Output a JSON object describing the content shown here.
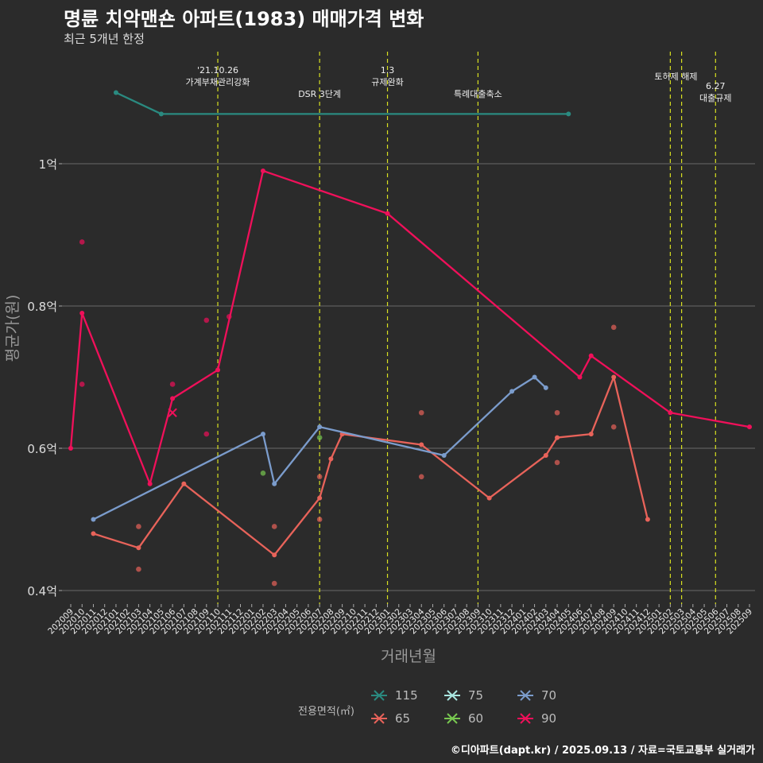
{
  "title": "명륜 치악맨숀 아파트(1983) 매매가격 변화",
  "subtitle": "최근 5개년 한정",
  "caption": "©디아파트(dapt.kr) / 2025.09.13 / 자료=국토교통부 실거래가",
  "chart_data": {
    "type": "line",
    "xlabel": "거래년월",
    "ylabel": "평균가(원)",
    "x": [
      "202009",
      "202010",
      "202011",
      "202012",
      "202101",
      "202102",
      "202103",
      "202104",
      "202105",
      "202106",
      "202107",
      "202108",
      "202109",
      "202110",
      "202111",
      "202112",
      "202201",
      "202202",
      "202203",
      "202204",
      "202205",
      "202206",
      "202207",
      "202208",
      "202209",
      "202210",
      "202211",
      "202212",
      "202301",
      "202302",
      "202303",
      "202304",
      "202305",
      "202306",
      "202307",
      "202308",
      "202309",
      "202310",
      "202311",
      "202312",
      "202401",
      "202402",
      "202403",
      "202404",
      "202405",
      "202406",
      "202407",
      "202408",
      "202409",
      "202410",
      "202411",
      "202412",
      "202501",
      "202502",
      "202503",
      "202504",
      "202505",
      "202506",
      "202507",
      "202508",
      "202509"
    ],
    "yunit": "만원",
    "yticks": [
      {
        "value": 4000,
        "label": "0.4억"
      },
      {
        "value": 6000,
        "label": "0.6억"
      },
      {
        "value": 8000,
        "label": "0.8억"
      },
      {
        "value": 10000,
        "label": "1억"
      }
    ],
    "ylim": [
      3800,
      11500
    ],
    "grid": true,
    "legend_title": "전용면적(㎡)",
    "legend_position": "bottom",
    "series": [
      {
        "name": "115",
        "color": "#2a8a80",
        "line": [
          [
            "202101",
            11000
          ],
          [
            "202105",
            10700
          ],
          [
            "202405",
            10700
          ]
        ],
        "points": []
      },
      {
        "name": "65",
        "color": "#e8635a",
        "line": [
          [
            "202011",
            4800
          ],
          [
            "202103",
            4600
          ],
          [
            "202107",
            5500
          ],
          [
            "202203",
            4500
          ],
          [
            "202207",
            5300
          ],
          [
            "202208",
            5850
          ],
          [
            "202209",
            6200
          ],
          [
            "202304",
            6050
          ],
          [
            "202310",
            5300
          ],
          [
            "202403",
            5900
          ],
          [
            "202404",
            6150
          ],
          [
            "202407",
            6200
          ],
          [
            "202409",
            7000
          ],
          [
            "202412",
            5000
          ]
        ],
        "points": [
          [
            "202103",
            4900
          ],
          [
            "202103",
            4300
          ],
          [
            "202203",
            4900
          ],
          [
            "202203",
            4100
          ],
          [
            "202207",
            5600
          ],
          [
            "202207",
            5000
          ],
          [
            "202304",
            6500
          ],
          [
            "202304",
            5600
          ],
          [
            "202404",
            6500
          ],
          [
            "202404",
            5800
          ],
          [
            "202409",
            7700
          ],
          [
            "202409",
            6300
          ]
        ]
      },
      {
        "name": "75",
        "color": "#a8e6e0",
        "line": [],
        "points": []
      },
      {
        "name": "60",
        "color": "#78c850",
        "line": [],
        "points": [
          [
            "202202",
            5650
          ],
          [
            "202207",
            6150
          ]
        ]
      },
      {
        "name": "70",
        "color": "#7b9ccc",
        "line": [
          [
            "202011",
            5000
          ],
          [
            "202202",
            6200
          ],
          [
            "202203",
            5500
          ],
          [
            "202207",
            6300
          ],
          [
            "202306",
            5900
          ],
          [
            "202312",
            6800
          ],
          [
            "202402",
            7000
          ],
          [
            "202403",
            6850
          ]
        ],
        "points": []
      },
      {
        "name": "90",
        "color": "#f0105a",
        "line": [
          [
            "202009",
            6000
          ],
          [
            "202010",
            7900
          ],
          [
            "202104",
            5500
          ],
          [
            "202106",
            6700
          ],
          [
            "202110",
            7100
          ],
          [
            "202202",
            9900
          ],
          [
            "202301",
            9300
          ],
          [
            "202406",
            7000
          ],
          [
            "202407",
            7300
          ],
          [
            "202502",
            6500
          ],
          [
            "202509",
            6300
          ]
        ],
        "points": [
          [
            "202010",
            8900
          ],
          [
            "202010",
            6900
          ],
          [
            "202106",
            6900
          ],
          [
            "202109",
            7800
          ],
          [
            "202109",
            6200
          ],
          [
            "202111",
            7850
          ]
        ],
        "cancelled": [
          [
            "202106",
            6500
          ]
        ]
      }
    ],
    "annotations": [
      {
        "x": "202110",
        "lines": [
          "'21.10.26",
          "가계부채관리강화"
        ],
        "row": 0
      },
      {
        "x": "202207",
        "lines": [
          "DSR 3단계"
        ],
        "row": 1
      },
      {
        "x": "202301",
        "lines": [
          "1.3",
          "규제완화"
        ],
        "row": 0
      },
      {
        "x": "202309",
        "lines": [
          "특례대출축소"
        ],
        "row": 1
      },
      {
        "x": "202502",
        "lines": [],
        "row": 0
      },
      {
        "x": "202503",
        "lines": [
          "토허제 해제"
        ],
        "row": 0,
        "offset": "center-between-prev"
      },
      {
        "x": "202506",
        "lines": [
          "6.27",
          "대출규제"
        ],
        "row": 2
      }
    ]
  }
}
